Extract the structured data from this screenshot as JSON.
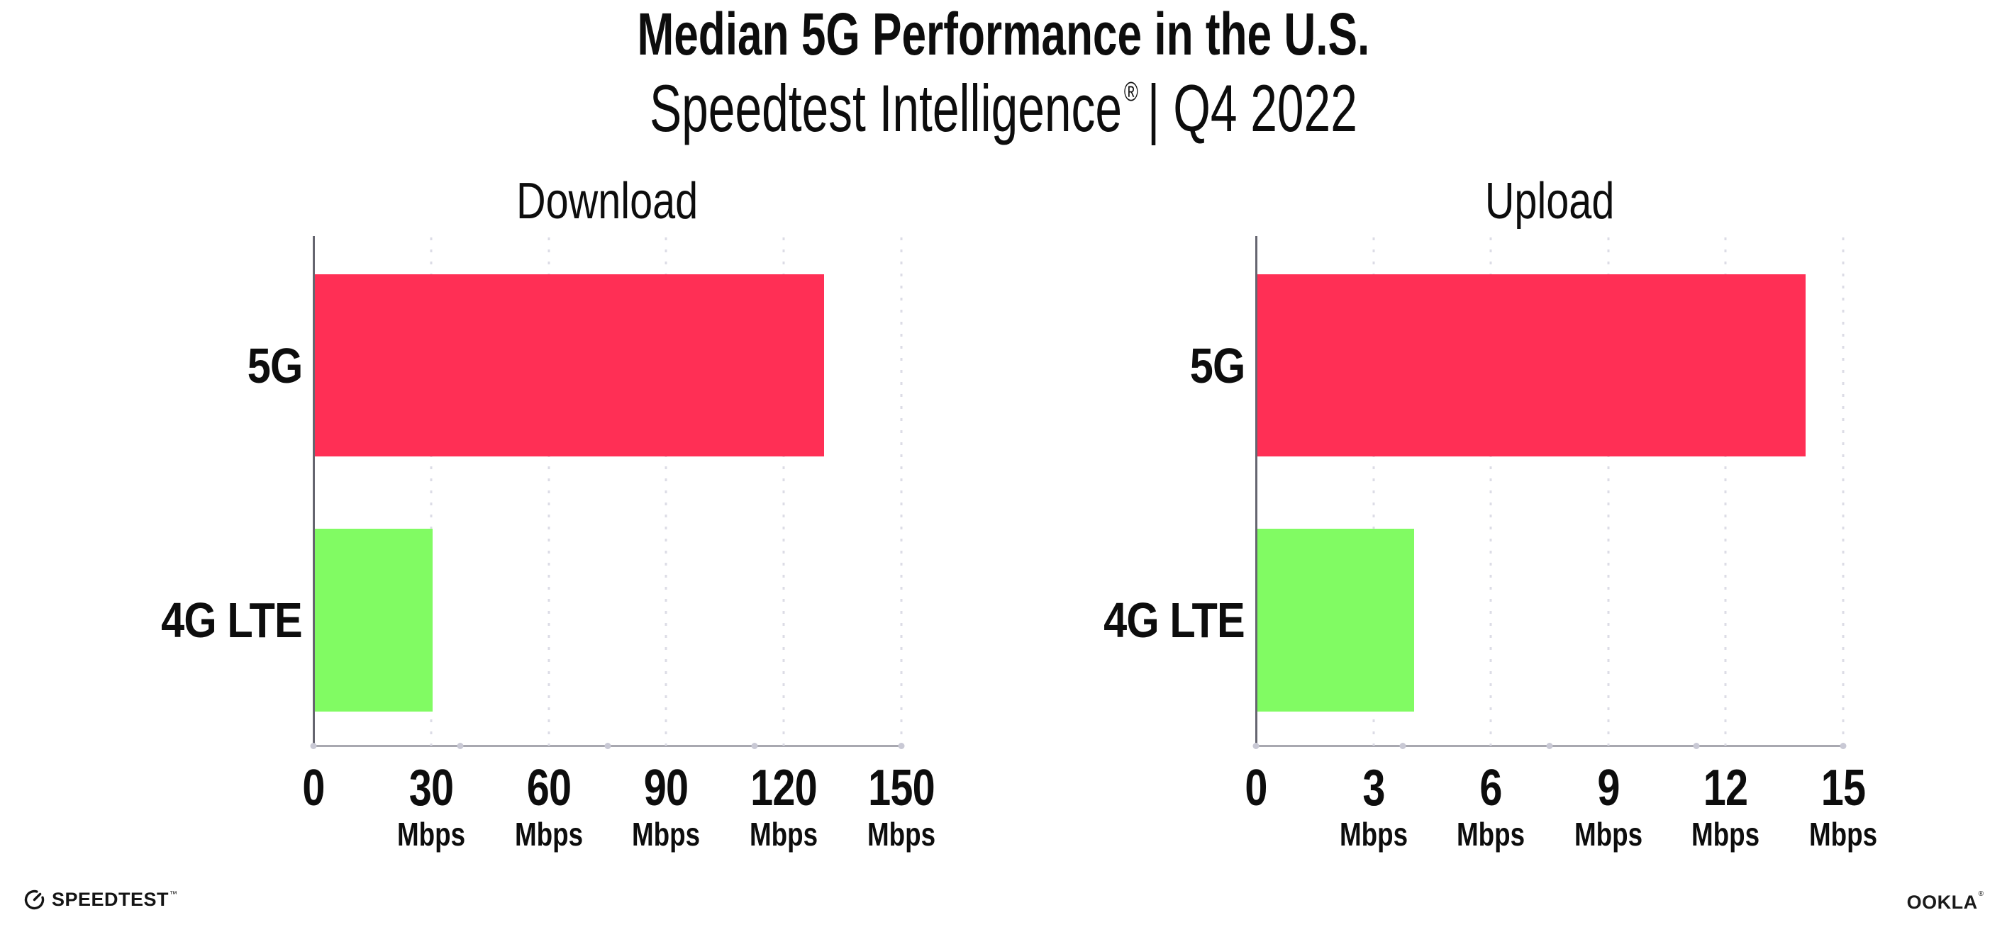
{
  "header": {
    "title": "Median 5G Performance in the U.S.",
    "subtitle_brand": "Speedtest Intelligence",
    "subtitle_reg": "®",
    "subtitle_rest": "| Q4 2022"
  },
  "chart_data": [
    {
      "type": "bar",
      "orientation": "horizontal",
      "title": "Download",
      "categories": [
        "5G",
        "4G LTE"
      ],
      "values": [
        130,
        30
      ],
      "unit": "Mbps",
      "xlim": [
        0,
        150
      ],
      "xticks": [
        0,
        30,
        60,
        90,
        120,
        150
      ],
      "series_colors": [
        "#ff2f55",
        "#81fb63"
      ],
      "grid": "dotted-vertical",
      "legend": "none"
    },
    {
      "type": "bar",
      "orientation": "horizontal",
      "title": "Upload",
      "categories": [
        "5G",
        "4G LTE"
      ],
      "values": [
        14,
        4
      ],
      "unit": "Mbps",
      "xlim": [
        0,
        15
      ],
      "xticks": [
        0,
        3,
        6,
        9,
        12,
        15
      ],
      "series_colors": [
        "#ff2f55",
        "#81fb63"
      ],
      "grid": "dotted-vertical",
      "legend": "none"
    }
  ],
  "colors": {
    "bar_5g": "#ff2f55",
    "bar_4g_lte": "#81fb63",
    "axis_left": "#65656f",
    "axis_bottom": "#a8a8b0",
    "gridline": "#dcdce6",
    "text": "#0d0d0d"
  },
  "footer": {
    "speedtest_label": "SPEEDTEST",
    "speedtest_tm": "™",
    "gauge_icon": "speedtest-gauge-icon",
    "ookla_label": "OOKLA",
    "ookla_reg": "®"
  }
}
